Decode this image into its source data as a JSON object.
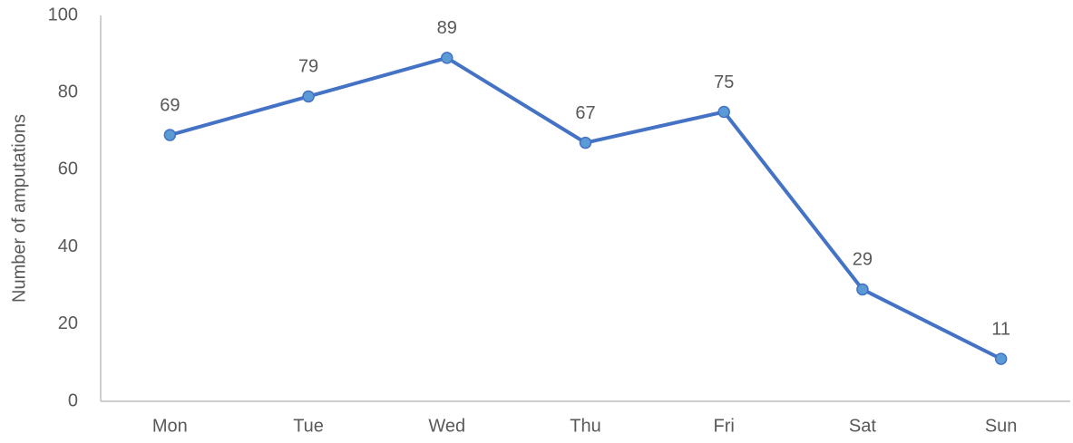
{
  "chart_data": {
    "type": "line",
    "y_label": "Number of amputations",
    "categories": [
      "Mon",
      "Tue",
      "Wed",
      "Thu",
      "Fri",
      "Sat",
      "Sun"
    ],
    "values": [
      69,
      79,
      89,
      67,
      75,
      29,
      11
    ],
    "color": "#4472c4",
    "marker_color": "#5b9bd5",
    "ylim": [
      0,
      100
    ],
    "yticks": [
      0,
      20,
      40,
      60,
      80,
      100
    ],
    "grid": false
  }
}
